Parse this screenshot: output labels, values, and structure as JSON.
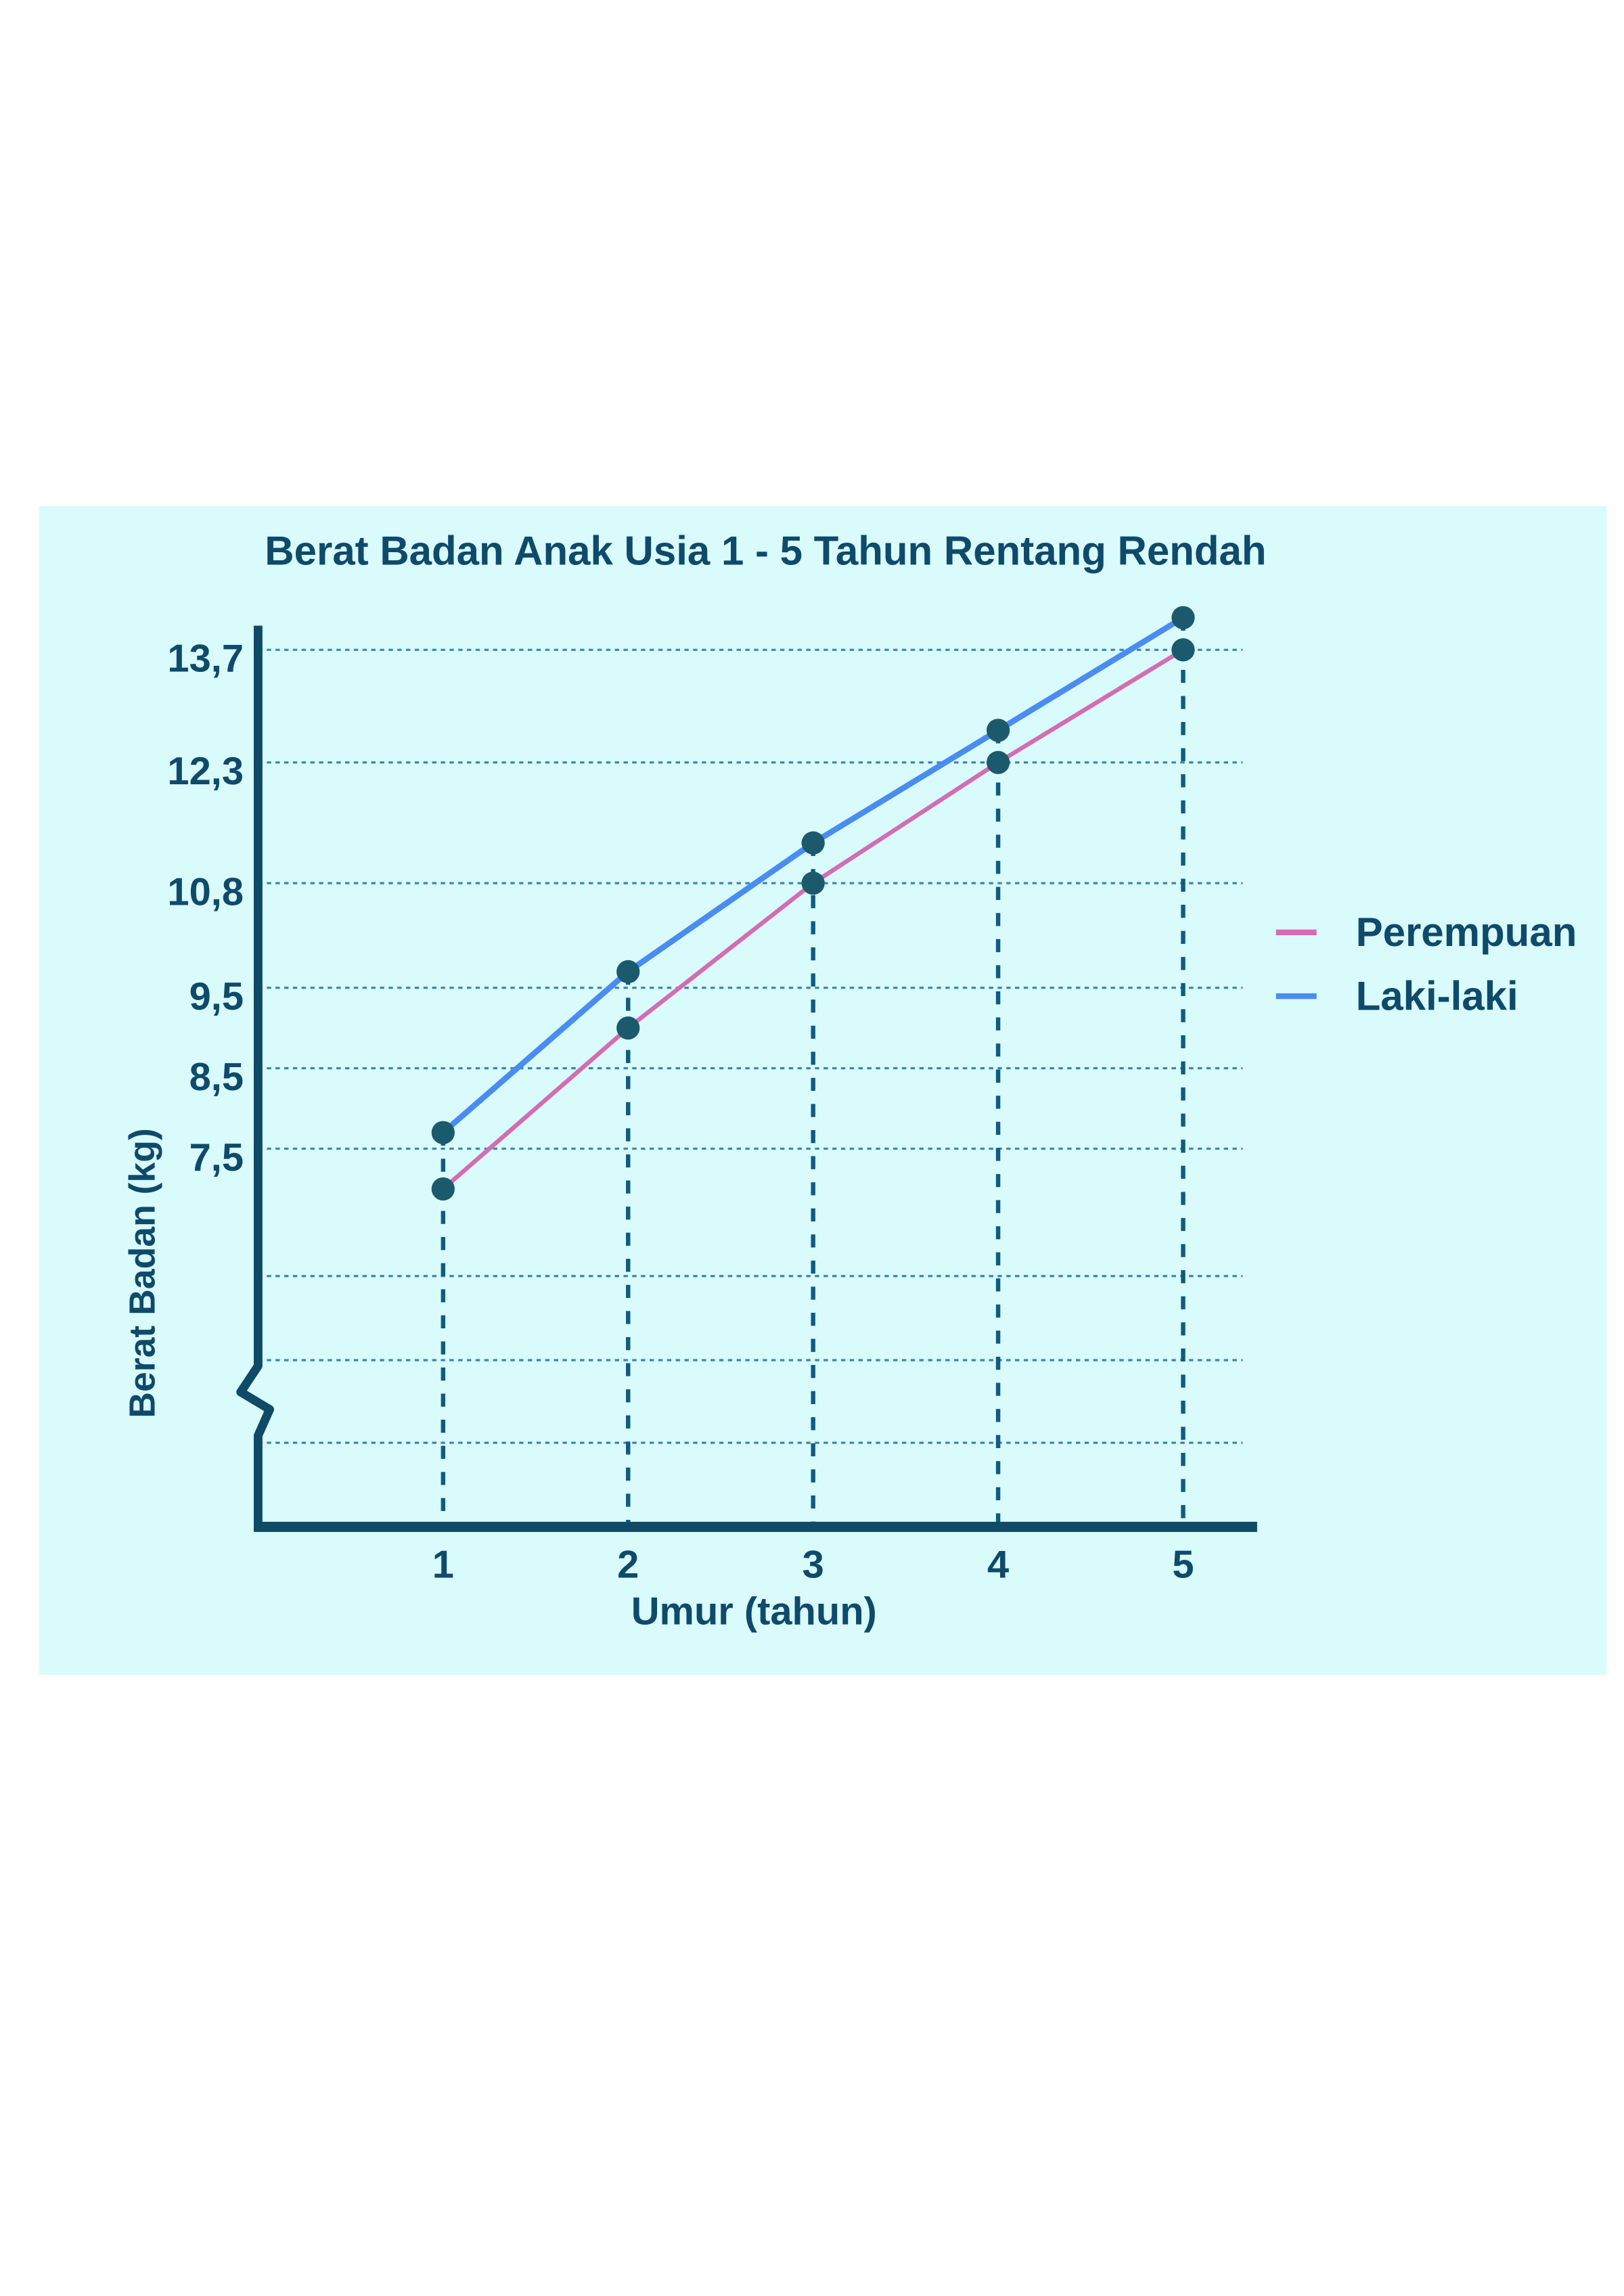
{
  "chart_data": {
    "type": "line",
    "title": "Berat Badan Anak Usia 1 - 5 Tahun Rentang Rendah",
    "x_label": "Umur (tahun)",
    "y_label": "Berat Badan (kg)",
    "x": [
      1,
      2,
      3,
      4,
      5
    ],
    "xlim": [
      0,
      5.4
    ],
    "xticks": [
      1,
      2,
      3,
      4,
      5
    ],
    "ylim": [
      2.8,
      14
    ],
    "yticks": [
      {
        "value": 7.5,
        "label": "7,5"
      },
      {
        "value": 8.5,
        "label": "8,5"
      },
      {
        "value": 9.5,
        "label": "9,5"
      },
      {
        "value": 10.8,
        "label": "10,8"
      },
      {
        "value": 12.3,
        "label": "12,3"
      },
      {
        "value": 13.7,
        "label": "13,7"
      }
    ],
    "grid": true,
    "axis_break": true,
    "legend": "right",
    "series": [
      {
        "name": "Perempuan",
        "color": "#d46cb4",
        "values": [
          7.0,
          9.0,
          10.8,
          12.3,
          13.7
        ]
      },
      {
        "name": "Laki-laki",
        "color": "#4a8cf0",
        "values": [
          7.7,
          9.7,
          11.3,
          12.7,
          14.1
        ]
      }
    ]
  }
}
